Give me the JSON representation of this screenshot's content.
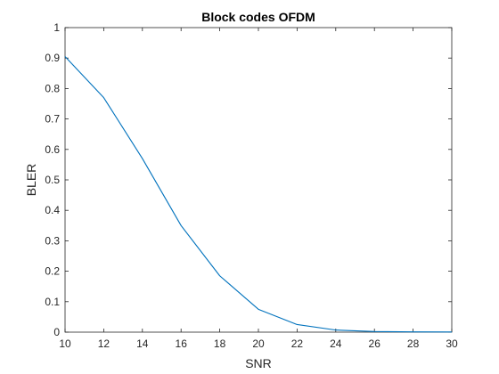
{
  "chart_data": {
    "type": "line",
    "title": "Block codes OFDM",
    "xlabel": "SNR",
    "ylabel": "BLER",
    "xlim": [
      10,
      30
    ],
    "ylim": [
      0,
      1
    ],
    "xticks": [
      "10",
      "12",
      "14",
      "16",
      "18",
      "20",
      "22",
      "24",
      "26",
      "28",
      "30"
    ],
    "yticks": [
      "0",
      "0.1",
      "0.2",
      "0.3",
      "0.4",
      "0.5",
      "0.6",
      "0.7",
      "0.8",
      "0.9",
      "1"
    ],
    "grid": false,
    "series": [
      {
        "color": "#0072BD",
        "x": [
          10,
          12,
          14,
          16,
          18,
          20,
          22,
          24,
          26,
          28,
          30
        ],
        "y": [
          0.905,
          0.77,
          0.57,
          0.35,
          0.185,
          0.075,
          0.025,
          0.007,
          0.002,
          0.001,
          0.0005
        ]
      }
    ]
  },
  "colors": {
    "axis": "#262626",
    "background": "#ffffff"
  }
}
